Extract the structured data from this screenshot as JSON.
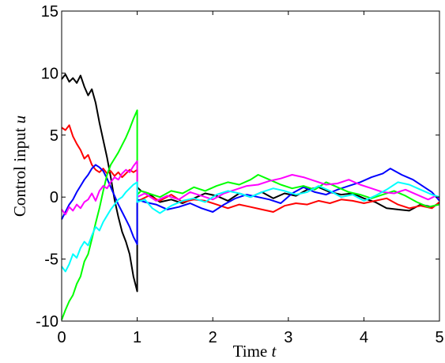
{
  "chart_data": {
    "type": "line",
    "xlabel": "Time",
    "xlabel_var": "t",
    "ylabel": "Control input",
    "ylabel_var": "u",
    "xlim": [
      0,
      5
    ],
    "ylim": [
      -10,
      15
    ],
    "x_ticks": [
      "0",
      "1",
      "2",
      "3",
      "4",
      "5"
    ],
    "y_ticks": [
      "-10",
      "-5",
      "0",
      "5",
      "10",
      "15"
    ],
    "grid": false,
    "legend": "none",
    "series": [
      {
        "color": "#000000",
        "points": [
          [
            0,
            9.5
          ],
          [
            0.05,
            9.9
          ],
          [
            0.1,
            9.3
          ],
          [
            0.15,
            9.6
          ],
          [
            0.2,
            9.2
          ],
          [
            0.25,
            9.8
          ],
          [
            0.3,
            8.9
          ],
          [
            0.35,
            8.2
          ],
          [
            0.4,
            8.7
          ],
          [
            0.45,
            7.6
          ],
          [
            0.5,
            6.0
          ],
          [
            0.55,
            4.6
          ],
          [
            0.6,
            3.2
          ],
          [
            0.65,
            1.6
          ],
          [
            0.7,
            -0.2
          ],
          [
            0.75,
            -1.6
          ],
          [
            0.8,
            -2.8
          ],
          [
            0.85,
            -3.6
          ],
          [
            0.9,
            -4.6
          ],
          [
            0.95,
            -6.4
          ],
          [
            1.0,
            -7.6
          ],
          [
            1.0,
            0.8
          ],
          [
            1.05,
            0.5
          ],
          [
            1.15,
            0.3
          ],
          [
            1.3,
            -0.4
          ],
          [
            1.45,
            -0.2
          ],
          [
            1.6,
            -0.5
          ],
          [
            1.75,
            -0.1
          ],
          [
            1.9,
            0.3
          ],
          [
            2.05,
            0.1
          ],
          [
            2.2,
            -0.3
          ],
          [
            2.35,
            0.3
          ],
          [
            2.5,
            0.0
          ],
          [
            2.65,
            0.4
          ],
          [
            2.8,
            -0.1
          ],
          [
            2.95,
            0.3
          ],
          [
            3.1,
            0.1
          ],
          [
            3.25,
            0.6
          ],
          [
            3.4,
            0.8
          ],
          [
            3.55,
            0.4
          ],
          [
            3.7,
            0.2
          ],
          [
            3.85,
            0.3
          ],
          [
            4.0,
            -0.1
          ],
          [
            4.15,
            -0.4
          ],
          [
            4.3,
            -0.9
          ],
          [
            4.45,
            -1.0
          ],
          [
            4.6,
            -1.1
          ],
          [
            4.75,
            -0.6
          ],
          [
            4.9,
            -0.8
          ],
          [
            5.0,
            -0.5
          ]
        ]
      },
      {
        "color": "#ff0000",
        "points": [
          [
            0,
            5.6
          ],
          [
            0.05,
            5.4
          ],
          [
            0.1,
            5.8
          ],
          [
            0.15,
            4.9
          ],
          [
            0.2,
            4.3
          ],
          [
            0.25,
            3.8
          ],
          [
            0.3,
            3.1
          ],
          [
            0.35,
            3.4
          ],
          [
            0.4,
            2.6
          ],
          [
            0.45,
            2.2
          ],
          [
            0.5,
            2.0
          ],
          [
            0.55,
            2.3
          ],
          [
            0.6,
            1.9
          ],
          [
            0.65,
            2.1
          ],
          [
            0.7,
            1.7
          ],
          [
            0.75,
            2.0
          ],
          [
            0.8,
            1.6
          ],
          [
            0.85,
            1.9
          ],
          [
            0.9,
            2.2
          ],
          [
            0.95,
            2.0
          ],
          [
            1.0,
            2.2
          ],
          [
            1.0,
            -0.3
          ],
          [
            1.05,
            -0.2
          ],
          [
            1.15,
            0.1
          ],
          [
            1.3,
            -0.3
          ],
          [
            1.45,
            0.2
          ],
          [
            1.6,
            -0.4
          ],
          [
            1.75,
            -0.2
          ],
          [
            1.9,
            -0.3
          ],
          [
            2.05,
            -0.6
          ],
          [
            2.2,
            -0.9
          ],
          [
            2.35,
            -0.6
          ],
          [
            2.5,
            -0.8
          ],
          [
            2.65,
            -1.0
          ],
          [
            2.8,
            -1.2
          ],
          [
            2.95,
            -0.7
          ],
          [
            3.1,
            -0.5
          ],
          [
            3.25,
            -0.6
          ],
          [
            3.4,
            -0.3
          ],
          [
            3.55,
            -0.5
          ],
          [
            3.7,
            -0.2
          ],
          [
            3.85,
            -0.3
          ],
          [
            4.0,
            -0.5
          ],
          [
            4.15,
            -0.3
          ],
          [
            4.3,
            -0.1
          ],
          [
            4.45,
            -0.6
          ],
          [
            4.6,
            -0.9
          ],
          [
            4.75,
            -0.7
          ],
          [
            4.9,
            -0.9
          ],
          [
            5.0,
            -0.4
          ]
        ]
      },
      {
        "color": "#0000ff",
        "points": [
          [
            0,
            -1.8
          ],
          [
            0.05,
            -1.2
          ],
          [
            0.1,
            -0.6
          ],
          [
            0.15,
            -0.2
          ],
          [
            0.2,
            0.4
          ],
          [
            0.25,
            0.9
          ],
          [
            0.3,
            1.4
          ],
          [
            0.35,
            1.8
          ],
          [
            0.4,
            2.3
          ],
          [
            0.45,
            2.6
          ],
          [
            0.5,
            2.4
          ],
          [
            0.55,
            2.1
          ],
          [
            0.6,
            1.5
          ],
          [
            0.65,
            0.8
          ],
          [
            0.7,
            0.1
          ],
          [
            0.75,
            -0.6
          ],
          [
            0.8,
            -1.2
          ],
          [
            0.85,
            -1.8
          ],
          [
            0.9,
            -2.4
          ],
          [
            0.95,
            -3.2
          ],
          [
            1.0,
            -3.8
          ],
          [
            1.0,
            -0.2
          ],
          [
            1.1,
            -0.4
          ],
          [
            1.25,
            -0.6
          ],
          [
            1.4,
            -1.0
          ],
          [
            1.55,
            -0.8
          ],
          [
            1.7,
            -0.5
          ],
          [
            1.85,
            -0.9
          ],
          [
            2.0,
            -1.2
          ],
          [
            2.15,
            -0.6
          ],
          [
            2.3,
            -0.1
          ],
          [
            2.45,
            0.2
          ],
          [
            2.6,
            0.0
          ],
          [
            2.75,
            -0.2
          ],
          [
            2.9,
            -0.5
          ],
          [
            3.05,
            0.3
          ],
          [
            3.2,
            0.8
          ],
          [
            3.35,
            0.4
          ],
          [
            3.5,
            0.2
          ],
          [
            3.65,
            0.6
          ],
          [
            3.8,
            0.9
          ],
          [
            3.95,
            1.2
          ],
          [
            4.1,
            1.6
          ],
          [
            4.25,
            1.9
          ],
          [
            4.35,
            2.3
          ],
          [
            4.5,
            1.8
          ],
          [
            4.65,
            1.4
          ],
          [
            4.8,
            0.8
          ],
          [
            4.9,
            0.4
          ],
          [
            5.0,
            -0.3
          ]
        ]
      },
      {
        "color": "#00ff00",
        "points": [
          [
            0,
            -9.9
          ],
          [
            0.05,
            -9.1
          ],
          [
            0.1,
            -8.4
          ],
          [
            0.15,
            -7.9
          ],
          [
            0.2,
            -7.0
          ],
          [
            0.25,
            -6.4
          ],
          [
            0.3,
            -5.2
          ],
          [
            0.35,
            -4.6
          ],
          [
            0.4,
            -3.4
          ],
          [
            0.45,
            -2.1
          ],
          [
            0.5,
            -0.9
          ],
          [
            0.55,
            0.5
          ],
          [
            0.6,
            1.8
          ],
          [
            0.65,
            2.6
          ],
          [
            0.7,
            3.1
          ],
          [
            0.75,
            3.6
          ],
          [
            0.8,
            4.2
          ],
          [
            0.85,
            4.8
          ],
          [
            0.9,
            5.5
          ],
          [
            0.95,
            6.3
          ],
          [
            1.0,
            7.0
          ],
          [
            1.0,
            0.2
          ],
          [
            1.05,
            0.5
          ],
          [
            1.15,
            0.3
          ],
          [
            1.3,
            0.0
          ],
          [
            1.45,
            0.5
          ],
          [
            1.6,
            0.3
          ],
          [
            1.75,
            0.8
          ],
          [
            1.9,
            0.5
          ],
          [
            2.05,
            0.9
          ],
          [
            2.2,
            1.2
          ],
          [
            2.35,
            1.0
          ],
          [
            2.5,
            1.4
          ],
          [
            2.6,
            1.8
          ],
          [
            2.75,
            1.4
          ],
          [
            2.9,
            1.0
          ],
          [
            3.05,
            0.7
          ],
          [
            3.2,
            0.9
          ],
          [
            3.35,
            0.6
          ],
          [
            3.5,
            1.2
          ],
          [
            3.65,
            0.8
          ],
          [
            3.8,
            0.4
          ],
          [
            3.95,
            0.2
          ],
          [
            4.1,
            -0.1
          ],
          [
            4.25,
            0.2
          ],
          [
            4.4,
            0.5
          ],
          [
            4.55,
            0.1
          ],
          [
            4.7,
            -0.4
          ],
          [
            4.85,
            -0.8
          ],
          [
            5.0,
            -0.6
          ]
        ]
      },
      {
        "color": "#ff00ff",
        "points": [
          [
            0,
            -1.0
          ],
          [
            0.05,
            -1.4
          ],
          [
            0.1,
            -0.8
          ],
          [
            0.15,
            -1.1
          ],
          [
            0.2,
            -0.6
          ],
          [
            0.25,
            -0.9
          ],
          [
            0.3,
            -0.4
          ],
          [
            0.35,
            -0.2
          ],
          [
            0.4,
            0.3
          ],
          [
            0.45,
            -0.3
          ],
          [
            0.5,
            0.5
          ],
          [
            0.55,
            0.9
          ],
          [
            0.6,
            0.7
          ],
          [
            0.65,
            1.2
          ],
          [
            0.7,
            1.6
          ],
          [
            0.75,
            1.4
          ],
          [
            0.8,
            1.9
          ],
          [
            0.85,
            2.2
          ],
          [
            0.9,
            2.0
          ],
          [
            0.95,
            2.5
          ],
          [
            1.0,
            2.9
          ],
          [
            1.0,
            0.0
          ],
          [
            1.1,
            0.3
          ],
          [
            1.25,
            -0.3
          ],
          [
            1.4,
            0.1
          ],
          [
            1.55,
            -0.2
          ],
          [
            1.7,
            0.4
          ],
          [
            1.85,
            0.1
          ],
          [
            2.0,
            -0.2
          ],
          [
            2.15,
            0.3
          ],
          [
            2.3,
            0.6
          ],
          [
            2.45,
            0.9
          ],
          [
            2.6,
            1.0
          ],
          [
            2.75,
            1.3
          ],
          [
            2.9,
            1.5
          ],
          [
            3.05,
            1.8
          ],
          [
            3.2,
            1.6
          ],
          [
            3.35,
            1.3
          ],
          [
            3.5,
            1.0
          ],
          [
            3.65,
            1.1
          ],
          [
            3.8,
            1.4
          ],
          [
            3.95,
            1.0
          ],
          [
            4.1,
            0.7
          ],
          [
            4.25,
            0.4
          ],
          [
            4.4,
            0.3
          ],
          [
            4.55,
            0.6
          ],
          [
            4.7,
            0.2
          ],
          [
            4.85,
            -0.2
          ],
          [
            4.95,
            0.1
          ],
          [
            5.0,
            -0.1
          ]
        ]
      },
      {
        "color": "#00ffff",
        "points": [
          [
            0,
            -5.6
          ],
          [
            0.05,
            -6.0
          ],
          [
            0.1,
            -5.4
          ],
          [
            0.15,
            -4.6
          ],
          [
            0.2,
            -4.9
          ],
          [
            0.25,
            -4.1
          ],
          [
            0.3,
            -3.6
          ],
          [
            0.35,
            -3.9
          ],
          [
            0.4,
            -3.1
          ],
          [
            0.45,
            -2.4
          ],
          [
            0.5,
            -2.7
          ],
          [
            0.55,
            -2.0
          ],
          [
            0.6,
            -1.5
          ],
          [
            0.65,
            -1.0
          ],
          [
            0.7,
            -0.6
          ],
          [
            0.75,
            -0.2
          ],
          [
            0.8,
            0.0
          ],
          [
            0.85,
            0.4
          ],
          [
            0.9,
            0.7
          ],
          [
            0.95,
            1.0
          ],
          [
            1.0,
            1.2
          ],
          [
            1.0,
            -0.4
          ],
          [
            1.1,
            -0.2
          ],
          [
            1.2,
            -0.9
          ],
          [
            1.3,
            -1.3
          ],
          [
            1.45,
            -0.7
          ],
          [
            1.6,
            -0.3
          ],
          [
            1.75,
            -0.1
          ],
          [
            1.9,
            -0.4
          ],
          [
            2.05,
            0.2
          ],
          [
            2.2,
            0.5
          ],
          [
            2.35,
            0.3
          ],
          [
            2.5,
            0.0
          ],
          [
            2.65,
            0.4
          ],
          [
            2.8,
            0.7
          ],
          [
            2.95,
            0.5
          ],
          [
            3.1,
            0.2
          ],
          [
            3.25,
            0.4
          ],
          [
            3.4,
            0.9
          ],
          [
            3.55,
            0.5
          ],
          [
            3.7,
            0.0
          ],
          [
            3.85,
            0.2
          ],
          [
            4.0,
            -0.3
          ],
          [
            4.15,
            0.1
          ],
          [
            4.3,
            0.6
          ],
          [
            4.45,
            1.2
          ],
          [
            4.6,
            1.0
          ],
          [
            4.75,
            0.6
          ],
          [
            4.9,
            0.2
          ],
          [
            5.0,
            0.0
          ]
        ]
      }
    ]
  }
}
